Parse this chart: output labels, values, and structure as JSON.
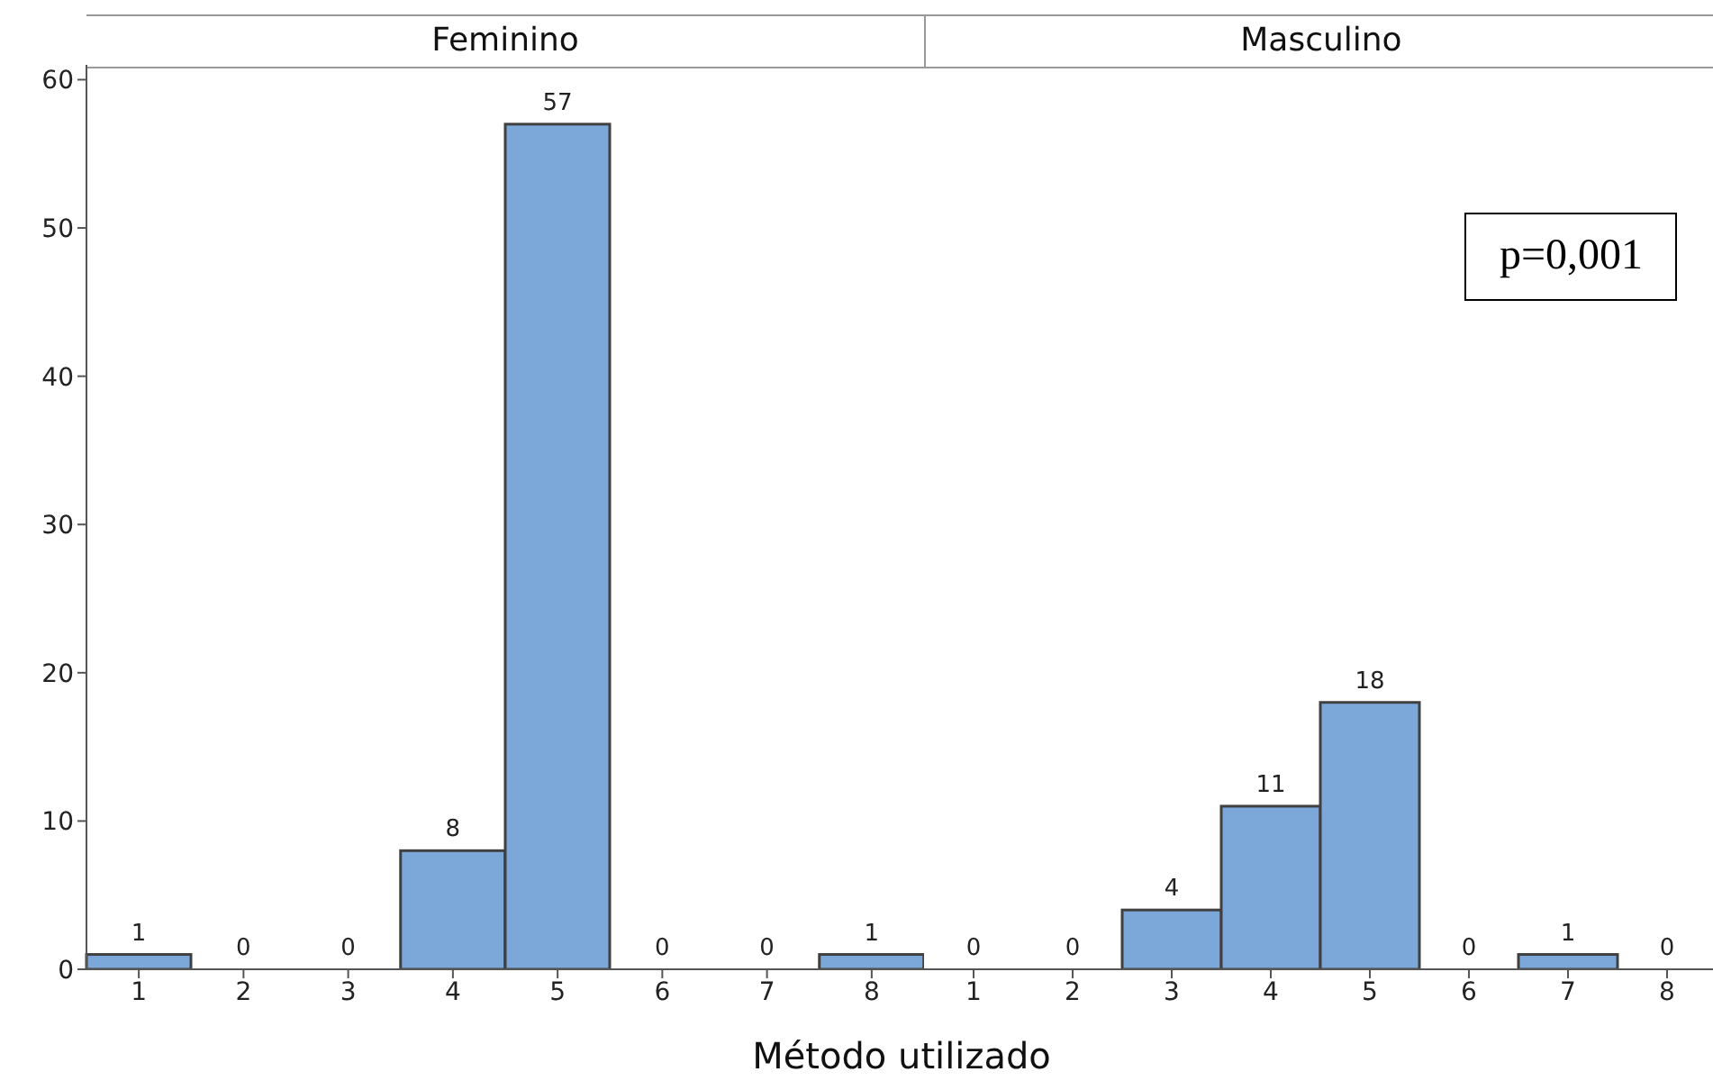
{
  "chart_data": [
    {
      "type": "bar",
      "title": "Feminino",
      "xlabel": "Método utilizado",
      "categories": [
        "1",
        "2",
        "3",
        "4",
        "5",
        "6",
        "7",
        "8"
      ],
      "values": [
        1,
        0,
        0,
        8,
        57,
        0,
        0,
        1
      ],
      "color": "#7ba7d9",
      "ylim": [
        0,
        61
      ],
      "yticks": [
        0,
        10,
        20,
        30,
        40,
        50,
        60
      ],
      "data_labels": true
    },
    {
      "type": "bar",
      "title": "Masculino",
      "categories": [
        "1",
        "2",
        "3",
        "4",
        "5",
        "6",
        "7",
        "8"
      ],
      "values": [
        0,
        0,
        4,
        11,
        18,
        0,
        1,
        0
      ],
      "color": "#7ba7d9",
      "ylim": [
        0,
        61
      ],
      "yticks": [
        0,
        10,
        20,
        30,
        40,
        50,
        60
      ],
      "data_labels": true,
      "tick_labels": "x",
      "annotations": [
        "p=0,001"
      ]
    }
  ]
}
